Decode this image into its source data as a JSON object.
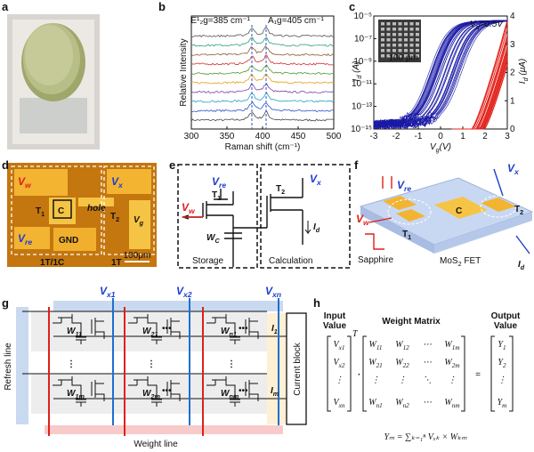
{
  "panels": {
    "a": {
      "letter": "a"
    },
    "b": {
      "letter": "b",
      "ylabel": "Relative Intensity",
      "xlabel": "Raman shift (cm⁻¹)",
      "xlim": [
        300,
        500
      ],
      "xticks": [
        300,
        350,
        400,
        450,
        500
      ],
      "peaks": [
        {
          "label": "E¹₂g=385 cm⁻¹",
          "value": 385
        },
        {
          "label": "A₁g=405 cm⁻¹",
          "value": 405
        }
      ],
      "colors": [
        "#444444",
        "#2b55c8",
        "#22a3c4",
        "#7c3fa6",
        "#e5a013",
        "#4a9a2a",
        "#d22d2d",
        "#8a5a2b",
        "#2aa07a",
        "#555555"
      ]
    },
    "c": {
      "letter": "c",
      "ylabel": [
        "I",
        "d",
        " (A)"
      ],
      "y2label": [
        "I",
        "d",
        " (μA)"
      ],
      "xlabel": [
        "V",
        "g",
        "(V)"
      ],
      "note": [
        "V",
        "d",
        "=0.5V"
      ],
      "scale": "100 μm",
      "xlim": [
        -3,
        3
      ],
      "xticks": [
        -3,
        -2,
        -1,
        0,
        1,
        2,
        3
      ],
      "log": true,
      "ylim": [
        1e-15,
        1e-05
      ],
      "yticks": [
        {
          "value": 1e-15,
          "label": "10⁻¹⁵"
        },
        {
          "value": 1e-13,
          "label": "10⁻¹³"
        },
        {
          "value": 1e-11,
          "label": "10⁻¹¹"
        },
        {
          "value": 1e-09,
          "label": "10⁻⁹"
        },
        {
          "value": 1e-07,
          "label": "10⁻⁷"
        },
        {
          "value": 1e-05,
          "label": "10⁻⁵"
        }
      ],
      "y2lim": [
        0,
        4
      ],
      "y2ticks": [
        0,
        1,
        2,
        3,
        4
      ],
      "colors": [
        "#1a1aa6",
        "#e3241d"
      ]
    },
    "d": {
      "letter": "d",
      "labels": {
        "vw": [
          "V",
          "w"
        ],
        "vx": [
          "V",
          "x"
        ],
        "t1": [
          "T",
          "1"
        ],
        "c": "C",
        "hole": "hole",
        "t2": [
          "T",
          "2"
        ],
        "vg": [
          "V",
          "g"
        ],
        "vre": [
          "V",
          "re"
        ],
        "gnd": "GND",
        "cell": "1T/1C",
        "one": "1T",
        "scale": "100μm"
      }
    },
    "e": {
      "letter": "e",
      "labels": {
        "vre": [
          "V",
          "re"
        ],
        "vx": [
          "V",
          "x"
        ],
        "t1": [
          "T",
          "1"
        ],
        "t2": [
          "T",
          "2"
        ],
        "vw": [
          "V",
          "w"
        ],
        "wc": [
          "W",
          "C"
        ],
        "id": [
          "I",
          "d"
        ],
        "storage": "Storage",
        "calc": "Calculation"
      }
    },
    "f": {
      "letter": "f",
      "labels": {
        "vre": [
          "V",
          "re"
        ],
        "vx": [
          "V",
          "x"
        ],
        "vw": [
          "V",
          "w"
        ],
        "c": "C",
        "t1": [
          "T",
          "1"
        ],
        "t2": [
          "T",
          "2"
        ],
        "id": [
          "I",
          "d"
        ],
        "sapphire": "Sapphire",
        "fet": [
          "MoS",
          "2",
          " FET"
        ]
      }
    },
    "g": {
      "letter": "g",
      "labels": {
        "vx1": [
          "V",
          "x1"
        ],
        "vx2": [
          "V",
          "x2"
        ],
        "vxn": [
          "V",
          "xn"
        ],
        "refresh": "Refresh line",
        "weight": "Weight line",
        "w11": [
          "W",
          "11"
        ],
        "w21": [
          "W",
          "21"
        ],
        "wn1": [
          "W",
          "n1"
        ],
        "w1m": [
          "W",
          "1m"
        ],
        "w2m": [
          "W",
          "2m"
        ],
        "wnm": [
          "W",
          "nm"
        ],
        "i1": [
          "I",
          "1"
        ],
        "im": [
          "I",
          "m"
        ],
        "block": "Current block",
        "dots": "•••",
        "vdots": "⋮"
      }
    },
    "h": {
      "letter": "h",
      "input": [
        "Input",
        "Value"
      ],
      "matrix": "Weight Matrix",
      "output": [
        "Output",
        "Value"
      ],
      "t": "T",
      "dot": "·",
      "eq": "=",
      "vec": [
        [
          "V",
          "x1"
        ],
        [
          "V",
          "x2"
        ],
        [
          "⋮"
        ],
        [
          "V",
          "xn"
        ]
      ],
      "weights": [
        [
          [
            "W",
            "11"
          ],
          [
            "W",
            "12"
          ],
          [
            "⋯"
          ],
          [
            "W",
            "1m"
          ]
        ],
        [
          [
            "W",
            "21"
          ],
          [
            "W",
            "22"
          ],
          [
            "⋯"
          ],
          [
            "W",
            "2m"
          ]
        ],
        [
          [
            "⋮"
          ],
          [
            "⋮"
          ],
          [
            "⋱"
          ],
          [
            "⋮"
          ]
        ],
        [
          [
            "W",
            "n1"
          ],
          [
            "W",
            "n2"
          ],
          [
            "⋯"
          ],
          [
            "W",
            "nm"
          ]
        ]
      ],
      "out": [
        [
          "Y",
          "1"
        ],
        [
          "Y",
          "2"
        ],
        [
          "⋮"
        ],
        [
          "Y",
          "m"
        ]
      ],
      "formula": "Yₘ = ∑ₖ₌₁ⁿ Vₓₖ × Wₖₘ"
    }
  }
}
